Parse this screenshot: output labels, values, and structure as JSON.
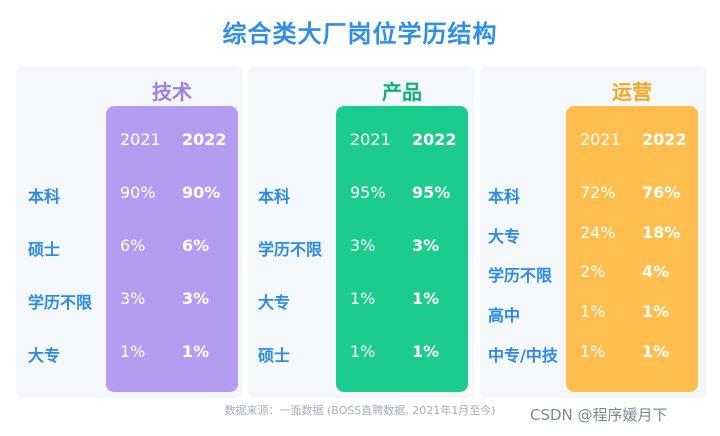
{
  "title": "综合类大厂岗位学历结构",
  "source": "数据来源：一面数据 (BOSS直聘数据, 2021年1月至今)",
  "watermark": "CSDN @程序媛月下",
  "chart_data": [
    {
      "type": "table",
      "title": "技术",
      "color": "#b49cf0",
      "columns": [
        "2021",
        "2022"
      ],
      "rows": [
        {
          "label": "本科",
          "v2021": "90%",
          "v2022": "90%"
        },
        {
          "label": "硕士",
          "v2021": "6%",
          "v2022": "6%"
        },
        {
          "label": "学历不限",
          "v2021": "3%",
          "v2022": "3%"
        },
        {
          "label": "大专",
          "v2021": "1%",
          "v2022": "1%"
        }
      ]
    },
    {
      "type": "table",
      "title": "产品",
      "color": "#1ccc8f",
      "columns": [
        "2021",
        "2022"
      ],
      "rows": [
        {
          "label": "本科",
          "v2021": "95%",
          "v2022": "95%"
        },
        {
          "label": "学历不限",
          "v2021": "3%",
          "v2022": "3%"
        },
        {
          "label": "大专",
          "v2021": "1%",
          "v2022": "1%"
        },
        {
          "label": "硕士",
          "v2021": "1%",
          "v2022": "1%"
        }
      ]
    },
    {
      "type": "table",
      "title": "运营",
      "color": "#ffbe4d",
      "columns": [
        "2021",
        "2022"
      ],
      "rows": [
        {
          "label": "本科",
          "v2021": "72%",
          "v2022": "76%"
        },
        {
          "label": "大专",
          "v2021": "24%",
          "v2022": "18%"
        },
        {
          "label": "学历不限",
          "v2021": "2%",
          "v2022": "4%"
        },
        {
          "label": "高中",
          "v2021": "1%",
          "v2022": "1%"
        },
        {
          "label": "中专/中技",
          "v2021": "1%",
          "v2022": "1%"
        }
      ]
    }
  ]
}
